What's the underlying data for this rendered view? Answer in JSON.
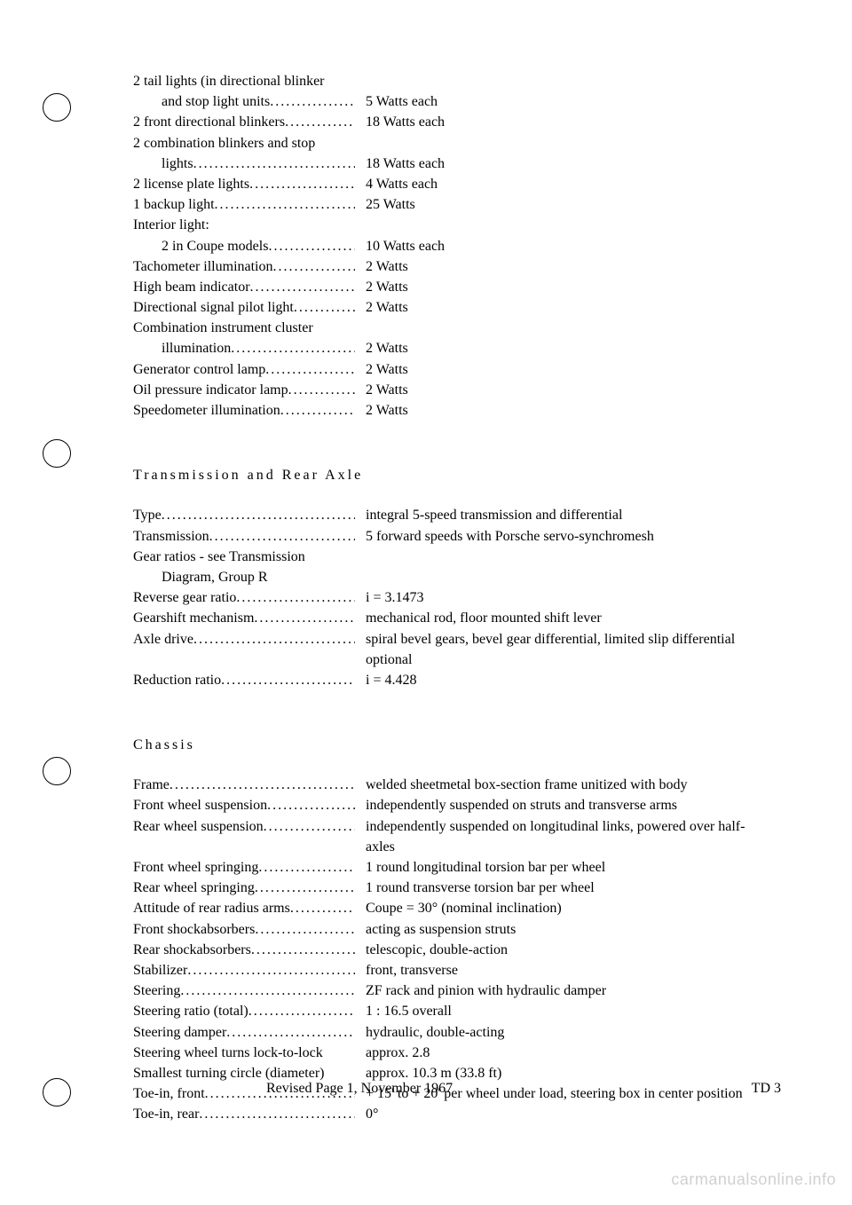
{
  "lights": [
    {
      "label": "2 tail lights (in directional blinker",
      "indent": 0,
      "dots": false,
      "value": ""
    },
    {
      "label": "and stop light units",
      "indent": 1,
      "dots": true,
      "value": "5 Watts each"
    },
    {
      "label": "2 front directional blinkers",
      "indent": 0,
      "dots": true,
      "value": "18 Watts each"
    },
    {
      "label": "2 combination blinkers and stop",
      "indent": 0,
      "dots": false,
      "value": ""
    },
    {
      "label": "lights",
      "indent": 1,
      "dots": true,
      "value": "18 Watts each"
    },
    {
      "label": "2 license plate lights",
      "indent": 0,
      "dots": true,
      "value": "4 Watts each"
    },
    {
      "label": "1 backup light",
      "indent": 0,
      "dots": true,
      "value": "25 Watts"
    },
    {
      "label": "Interior light:",
      "indent": 0,
      "dots": false,
      "value": ""
    },
    {
      "label": "2 in Coupe models",
      "indent": 1,
      "dots": true,
      "value": "10 Watts each"
    },
    {
      "label": "Tachometer illumination",
      "indent": 0,
      "dots": true,
      "value": "2 Watts"
    },
    {
      "label": "High beam indicator",
      "indent": 0,
      "dots": true,
      "value": "2 Watts"
    },
    {
      "label": "Directional signal pilot light",
      "indent": 0,
      "dots": true,
      "value": "2 Watts"
    },
    {
      "label": "Combination instrument cluster",
      "indent": 0,
      "dots": false,
      "value": ""
    },
    {
      "label": "illumination",
      "indent": 1,
      "dots": true,
      "value": "2 Watts"
    },
    {
      "label": "Generator control lamp",
      "indent": 0,
      "dots": true,
      "value": "2 Watts"
    },
    {
      "label": "Oil pressure indicator lamp",
      "indent": 0,
      "dots": true,
      "value": "2 Watts"
    },
    {
      "label": "Speedometer illumination",
      "indent": 0,
      "dots": true,
      "value": "2 Watts"
    }
  ],
  "trans_heading": "Transmission and Rear Axle",
  "transmission": [
    {
      "label": "Type",
      "indent": 0,
      "dots": true,
      "value": "integral 5-speed transmission and differential"
    },
    {
      "label": "Transmission",
      "indent": 0,
      "dots": true,
      "value": "5 forward speeds with Porsche servo-synchromesh"
    },
    {
      "label": "Gear ratios - see Transmission",
      "indent": 0,
      "dots": false,
      "value": ""
    },
    {
      "label": "Diagram, Group R",
      "indent": 1,
      "dots": false,
      "value": ""
    },
    {
      "label": "Reverse gear ratio",
      "indent": 0,
      "dots": true,
      "value": "i = 3.1473"
    },
    {
      "label": "Gearshift mechanism",
      "indent": 0,
      "dots": true,
      "value": "mechanical rod, floor mounted shift lever"
    },
    {
      "label": "Axle drive",
      "indent": 0,
      "dots": true,
      "value": "spiral bevel gears, bevel gear differential, limited slip differential optional"
    },
    {
      "label": "Reduction ratio",
      "indent": 0,
      "dots": true,
      "value": "i = 4.428"
    }
  ],
  "chassis_heading": "Chassis",
  "chassis": [
    {
      "label": "Frame",
      "indent": 0,
      "dots": true,
      "value": "welded sheetmetal box-section frame unitized with body"
    },
    {
      "label": "Front wheel suspension",
      "indent": 0,
      "dots": true,
      "value": "independently suspended on struts and transverse arms"
    },
    {
      "label": "Rear wheel suspension",
      "indent": 0,
      "dots": true,
      "value": "independently suspended on longitudinal links, powered over half-axles"
    },
    {
      "label": "Front wheel springing",
      "indent": 0,
      "dots": true,
      "value": "1 round longitudinal torsion bar per wheel"
    },
    {
      "label": "Rear wheel springing",
      "indent": 0,
      "dots": true,
      "value": "1 round transverse torsion bar per wheel"
    },
    {
      "label": "Attitude of rear radius arms",
      "indent": 0,
      "dots": true,
      "value": "Coupe = 30° (nominal inclination)"
    },
    {
      "label": "Front shockabsorbers",
      "indent": 0,
      "dots": true,
      "value": "acting as suspension struts"
    },
    {
      "label": "Rear shockabsorbers",
      "indent": 0,
      "dots": true,
      "value": "telescopic, double-action"
    },
    {
      "label": "Stabilizer",
      "indent": 0,
      "dots": true,
      "value": "front, transverse"
    },
    {
      "label": "Steering",
      "indent": 0,
      "dots": true,
      "value": "ZF rack and pinion with hydraulic damper"
    },
    {
      "label": "Steering ratio (total)",
      "indent": 0,
      "dots": true,
      "value": "1 : 16.5 overall"
    },
    {
      "label": "Steering damper",
      "indent": 0,
      "dots": true,
      "value": "hydraulic, double-acting"
    },
    {
      "label": "Steering wheel turns lock-to-lock",
      "indent": 0,
      "dots": false,
      "value": "approx. 2.8"
    },
    {
      "label": "Smallest turning circle (diameter)",
      "indent": 0,
      "dots": false,
      "value": "approx. 10.3 m (33.8 ft)"
    },
    {
      "label": "Toe-in, front",
      "indent": 0,
      "dots": true,
      "value": "+ 15' to + 20' per wheel under load, steering box in center position"
    },
    {
      "label": "Toe-in, rear",
      "indent": 0,
      "dots": true,
      "value": "0°"
    }
  ],
  "footer_center": "Revised Page 1, November 1967",
  "footer_right": "TD 3",
  "watermark": "carmanualsonline.info"
}
